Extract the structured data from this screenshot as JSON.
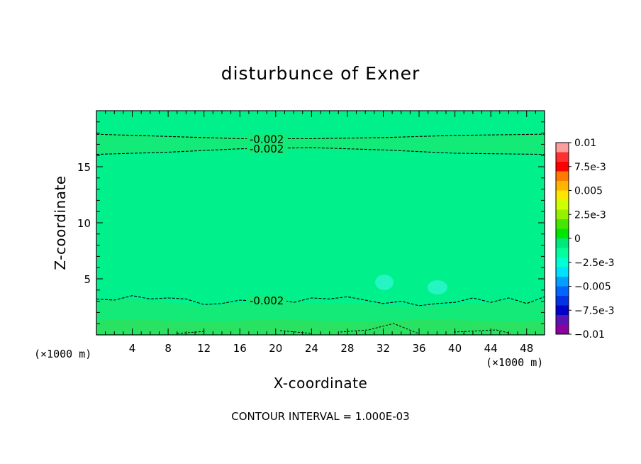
{
  "chart_data": {
    "type": "heatmap",
    "title": "disturbunce of Exner",
    "xlabel": "X-coordinate",
    "ylabel": "Z-coordinate",
    "x_unit_left": "(×1000 m)",
    "x_unit_right": "(×1000 m)",
    "xlim": [
      0,
      50
    ],
    "ylim": [
      0,
      20
    ],
    "x_ticks": [
      4,
      8,
      12,
      16,
      20,
      24,
      28,
      32,
      36,
      40,
      44,
      48
    ],
    "y_ticks": [
      5,
      10,
      15
    ],
    "footer": "CONTOUR INTERVAL = 1.000E-03",
    "colorbar": {
      "labels": [
        "0.01",
        "7.5e-3",
        "0.005",
        "2.5e-3",
        "0",
        "−2.5e-3",
        "−0.005",
        "−7.5e-3",
        "−0.01"
      ],
      "colors": [
        "#ff9c9c",
        "#ff3030",
        "#ff0000",
        "#ff7a00",
        "#ffb400",
        "#ffe600",
        "#d0ff00",
        "#96f000",
        "#46e600",
        "#00e600",
        "#00e87a",
        "#00ff9c",
        "#00ffd2",
        "#00e0ff",
        "#00a0ff",
        "#0064ff",
        "#0032e6",
        "#0000c8",
        "#5a14b4",
        "#8c00a0"
      ]
    },
    "contours": [
      {
        "label": "-0.002",
        "x": [
          0,
          8,
          16,
          24,
          32,
          40,
          50
        ],
        "y": [
          17.9,
          17.7,
          17.5,
          17.5,
          17.6,
          17.8,
          17.9
        ]
      },
      {
        "label": "-0.002",
        "x": [
          0,
          8,
          16,
          24,
          32,
          40,
          50
        ],
        "y": [
          16.1,
          16.3,
          16.6,
          16.7,
          16.5,
          16.2,
          16.1
        ]
      },
      {
        "label": "-0.002",
        "x": [
          0,
          2,
          4,
          6,
          8,
          10,
          12,
          14,
          16,
          18,
          20,
          22,
          24,
          26,
          28,
          30,
          32,
          34,
          36,
          38,
          40,
          42,
          44,
          46,
          48,
          50
        ],
        "y": [
          3.2,
          3.1,
          3.5,
          3.2,
          3.3,
          3.2,
          2.7,
          2.8,
          3.1,
          3.0,
          3.2,
          2.9,
          3.3,
          3.2,
          3.4,
          3.1,
          2.8,
          3.0,
          2.6,
          2.8,
          2.9,
          3.3,
          2.9,
          3.3,
          2.8,
          3.4
        ]
      }
    ]
  }
}
